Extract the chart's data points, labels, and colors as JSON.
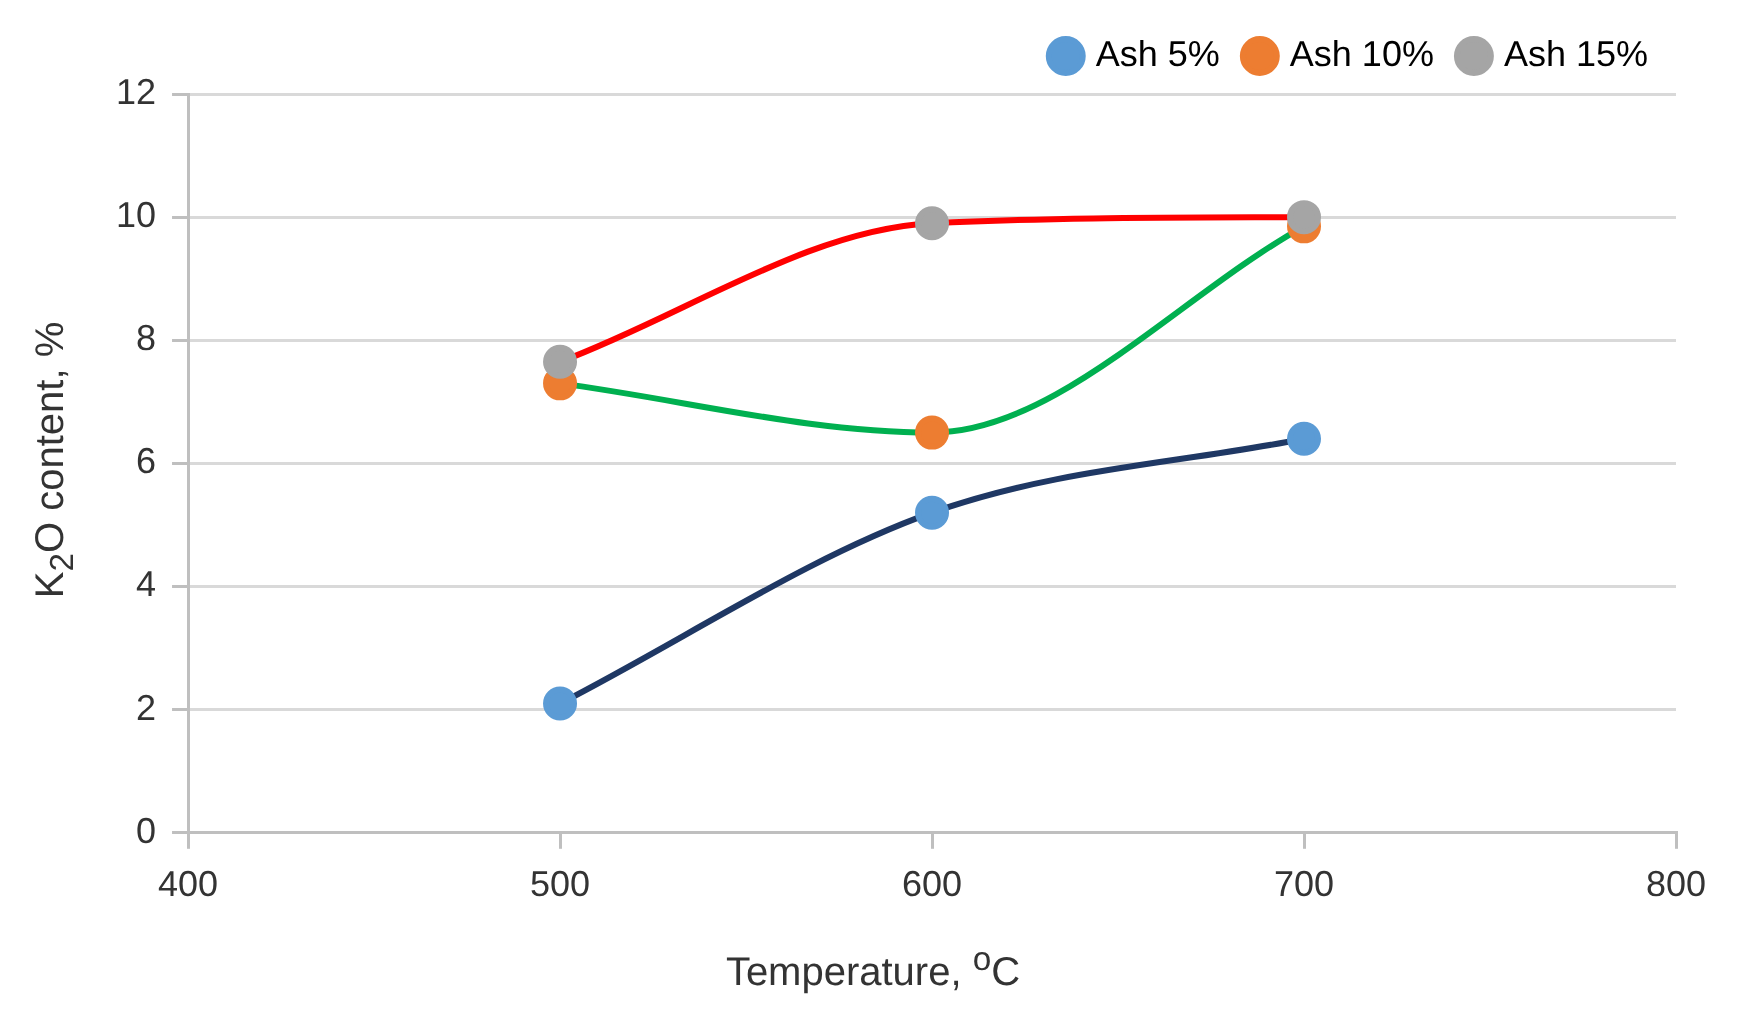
{
  "chart_data": {
    "type": "line",
    "xlabel": "Temperature, $^{o}$C",
    "ylabel": "K$_{2}$O content, %",
    "x": [
      500,
      600,
      700
    ],
    "series": [
      {
        "name": "Ash 5%",
        "color": "#1f3864",
        "colors": [
          "#5b9bd5",
          "#5b9bd5",
          "#5b9bd5"
        ],
        "values": [
          2.1,
          5.2,
          6.4
        ]
      },
      {
        "name": "Ash 10%",
        "color": "#00b050",
        "colors": [
          "#ed7d31",
          "#ed7d31",
          "#ed7d31"
        ],
        "values": [
          7.3,
          6.5,
          9.85
        ]
      },
      {
        "name": "Ash 15%",
        "color": "#ff0000",
        "colors": [
          "#a5a5a5",
          "#a5a5a5",
          "#a5a5a5"
        ],
        "values": [
          7.65,
          9.9,
          10.0
        ]
      }
    ],
    "xlim": [
      400,
      800
    ],
    "xticks": [
      400,
      500,
      600,
      700,
      800
    ],
    "ylim": [
      0,
      12
    ],
    "yticks": [
      0,
      2,
      4,
      6,
      8,
      10,
      12
    ],
    "grid": "y",
    "legend": "top right",
    "marker": "circle",
    "line_style": "solid"
  }
}
